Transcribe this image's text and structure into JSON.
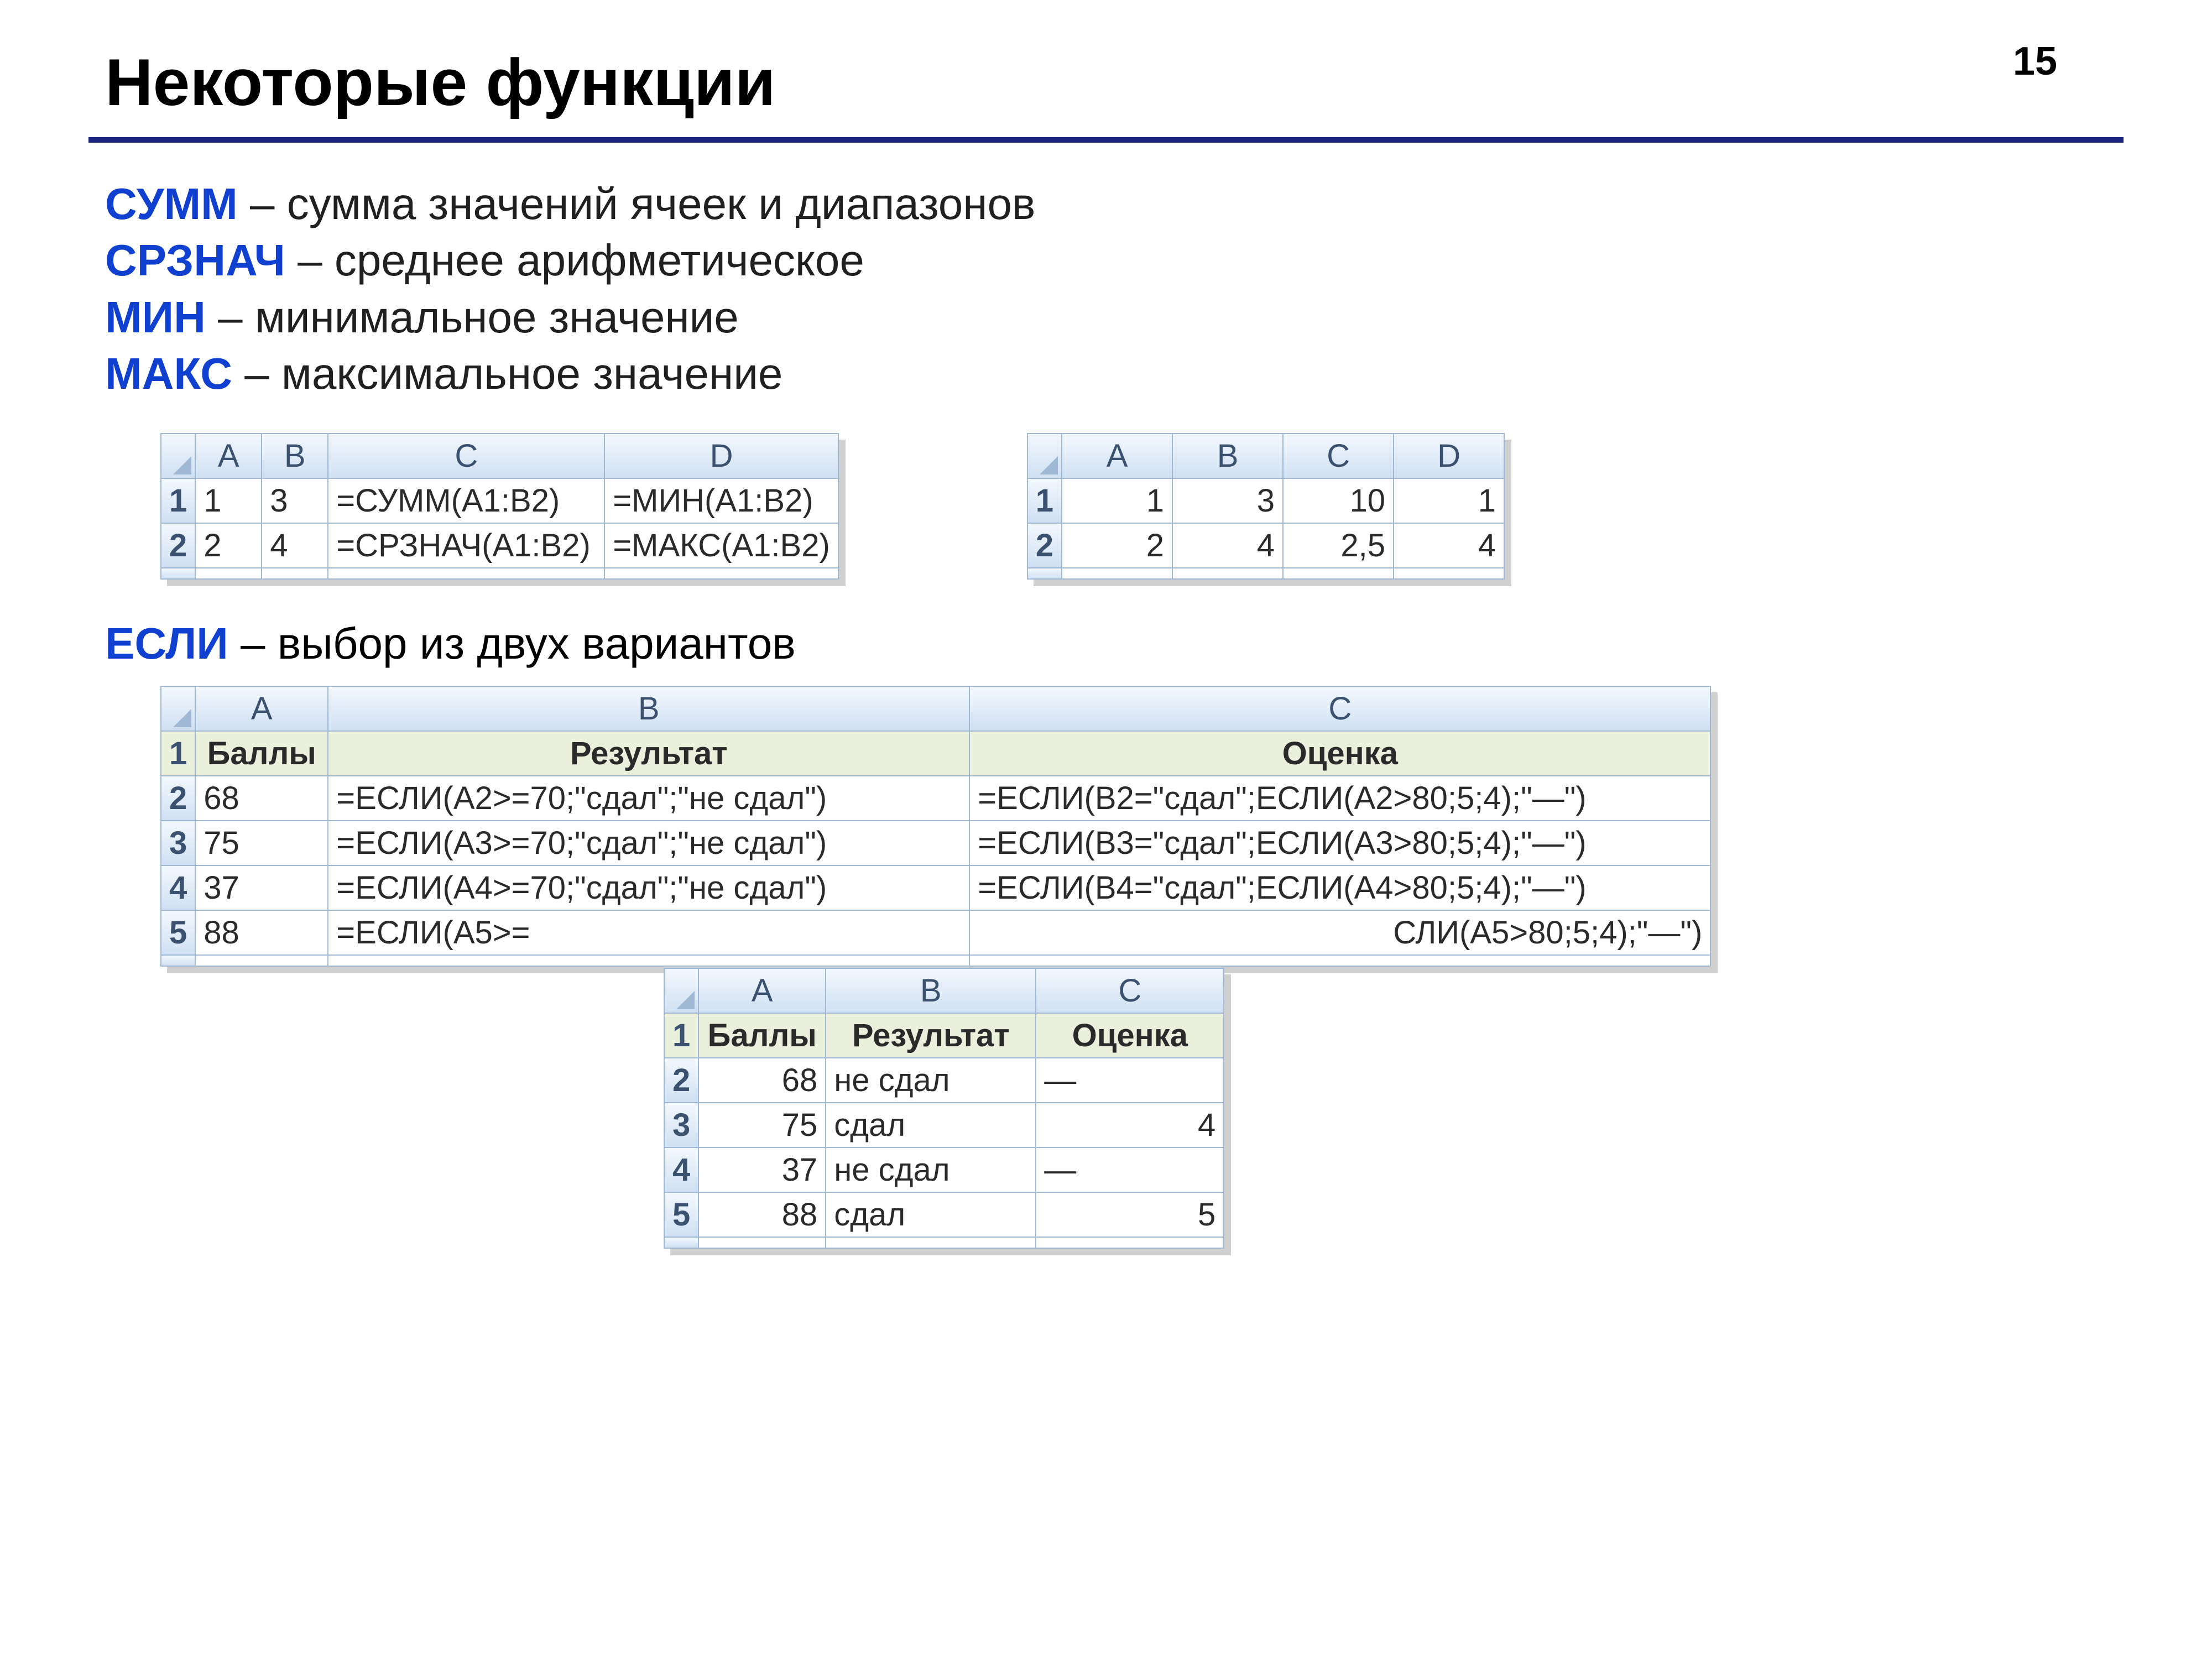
{
  "page_number": "15",
  "title": "Некоторые функции",
  "defs": [
    {
      "fn": "СУММ",
      "desc": "сумма значений ячеек и диапазонов"
    },
    {
      "fn": "СРЗНАЧ",
      "desc": "среднее арифметическое"
    },
    {
      "fn": "МИН",
      "desc": "минимальное значение"
    },
    {
      "fn": "МАКС",
      "desc": "максимальное значение"
    }
  ],
  "table1": {
    "cols": [
      "A",
      "B",
      "C",
      "D"
    ],
    "rows": [
      {
        "n": "1",
        "A": "1",
        "B": "3",
        "C": "=СУММ(A1:B2)",
        "D": "=МИН(A1:B2)"
      },
      {
        "n": "2",
        "A": "2",
        "B": "4",
        "C": "=СРЗНАЧ(A1:B2)",
        "D": "=МАКС(A1:B2)"
      }
    ]
  },
  "table2": {
    "cols": [
      "A",
      "B",
      "C",
      "D"
    ],
    "rows": [
      {
        "n": "1",
        "A": "1",
        "B": "3",
        "C": "10",
        "D": "1"
      },
      {
        "n": "2",
        "A": "2",
        "B": "4",
        "C": "2,5",
        "D": "4"
      }
    ]
  },
  "if_def": {
    "fn": "ЕСЛИ",
    "desc": "выбор из двух вариантов"
  },
  "table3": {
    "cols": [
      "A",
      "B",
      "C"
    ],
    "header_row": {
      "n": "1",
      "A": "Баллы",
      "B": "Результат",
      "C": "Оценка"
    },
    "rows": [
      {
        "n": "2",
        "A": "68",
        "B": "=ЕСЛИ(A2>=70;\"сдал\";\"не сдал\")",
        "C": "=ЕСЛИ(B2=\"сдал\";ЕСЛИ(A2>80;5;4);\"—\")"
      },
      {
        "n": "3",
        "A": "75",
        "B": "=ЕСЛИ(A3>=70;\"сдал\";\"не сдал\")",
        "C": "=ЕСЛИ(B3=\"сдал\";ЕСЛИ(A3>80;5;4);\"—\")"
      },
      {
        "n": "4",
        "A": "37",
        "B": "=ЕСЛИ(A4>=70;\"сдал\";\"не сдал\")",
        "C": "=ЕСЛИ(B4=\"сдал\";ЕСЛИ(A4>80;5;4);\"—\")"
      },
      {
        "n": "5",
        "A": "88",
        "B": "=ЕСЛИ(A5>=",
        "C": "СЛИ(A5>80;5;4);\"—\")"
      }
    ]
  },
  "table4": {
    "cols": [
      "A",
      "B",
      "C"
    ],
    "header_row": {
      "n": "1",
      "A": "Баллы",
      "B": "Результат",
      "C": "Оценка"
    },
    "rows": [
      {
        "n": "2",
        "A": "68",
        "B": "не сдал",
        "C": "—"
      },
      {
        "n": "3",
        "A": "75",
        "B": "сдал",
        "C": "4"
      },
      {
        "n": "4",
        "A": "37",
        "B": "не сдал",
        "C": "—"
      },
      {
        "n": "5",
        "A": "88",
        "B": "сдал",
        "C": "5"
      }
    ]
  },
  "colors": {
    "accent": "#1040d0",
    "rule": "#1a237e",
    "grid": "#9fb8d4",
    "header_bg_top": "#f3f8fe",
    "header_bg_bot": "#d0e0f2",
    "bold_row_bg": "#eaf0dc",
    "shadow": "#d0d0d0"
  }
}
